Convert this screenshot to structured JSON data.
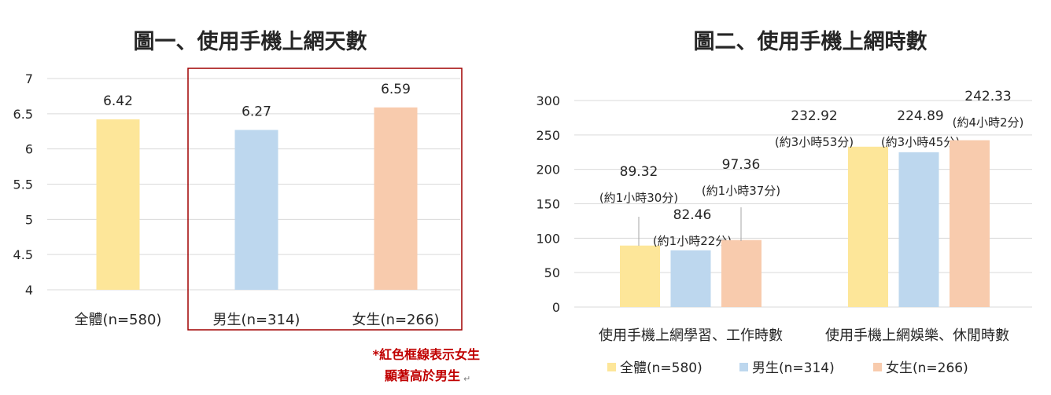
{
  "chart_data": [
    {
      "type": "bar",
      "title": "圖一、使用手機上網天數",
      "categories": [
        "全體(n=580)",
        "男生(n=314)",
        "女生(n=266)"
      ],
      "values": [
        6.42,
        6.27,
        6.59
      ],
      "value_labels": [
        "6.42",
        "6.27",
        "6.59"
      ],
      "colors": [
        "#fde699",
        "#bdd7ee",
        "#f8cbad"
      ],
      "ylim": [
        4,
        7
      ],
      "yticks": [
        4,
        4.5,
        5,
        5.5,
        6,
        6.5,
        7
      ],
      "ytick_labels": [
        "4",
        "4.5",
        "5",
        "5.5",
        "6",
        "6.5",
        "7"
      ],
      "grid": true,
      "highlight_box": {
        "covers_categories": [
          "男生(n=314)",
          "女生(n=266)"
        ],
        "color": "#a00000"
      },
      "note_lines": [
        "*紅色框線表示女生",
        "顯著高於男生"
      ],
      "note_mark": "↵"
    },
    {
      "type": "bar",
      "title": "圖二、使用手機上網時數",
      "categories": [
        "使用手機上網學習、工作時數",
        "使用手機上網娛樂、休閒時數"
      ],
      "series": [
        {
          "name": "全體(n=580)",
          "color": "#fde699",
          "values": [
            89.32,
            232.92
          ],
          "labels": [
            "89.32",
            "232.92"
          ],
          "sublabels": [
            "(約1小時30分)",
            "(約3小時53分)"
          ]
        },
        {
          "name": "男生(n=314)",
          "color": "#bdd7ee",
          "values": [
            82.46,
            224.89
          ],
          "labels": [
            "82.46",
            "224.89"
          ],
          "sublabels": [
            "(約1小時22分)",
            "(約3小時45分)"
          ]
        },
        {
          "name": "女生(n=266)",
          "color": "#f8cbad",
          "values": [
            97.36,
            242.33
          ],
          "labels": [
            "97.36",
            "242.33"
          ],
          "sublabels": [
            "(約1小時37分)",
            "(約4小時2分)"
          ]
        }
      ],
      "ylim": [
        0,
        300
      ],
      "yticks": [
        0,
        50,
        100,
        150,
        200,
        250,
        300
      ],
      "ytick_labels": [
        "0",
        "50",
        "100",
        "150",
        "200",
        "250",
        "300"
      ],
      "grid": true,
      "legend_position": "bottom"
    }
  ]
}
